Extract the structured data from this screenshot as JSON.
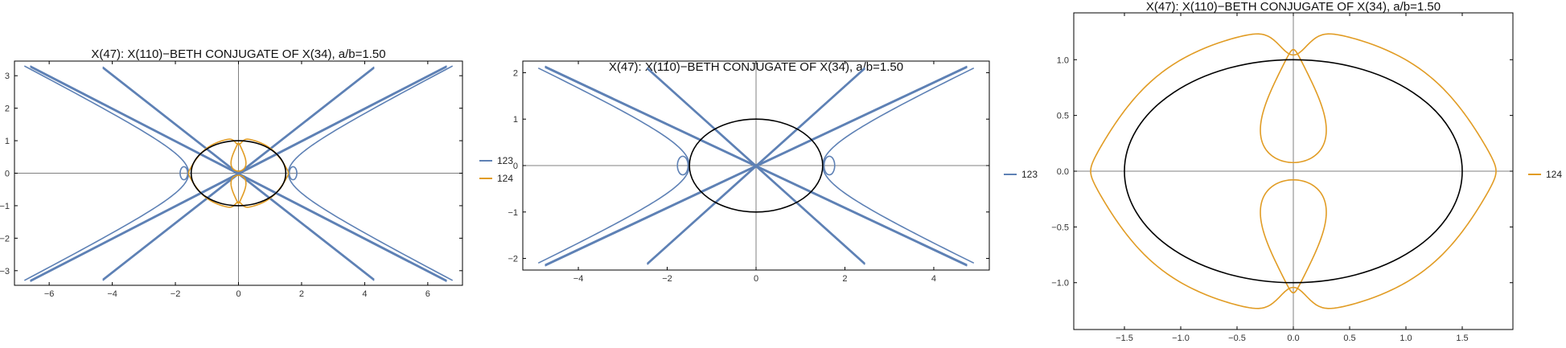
{
  "chart_data": [
    {
      "type": "line",
      "title": "X(47): X(110)−BETH CONJUGATE OF X(34), a/b=1.50",
      "xlabel": "",
      "ylabel": "",
      "xlim": [
        -7.1,
        7.1
      ],
      "ylim": [
        -3.45,
        3.45
      ],
      "xticks": [
        -6,
        -4,
        -2,
        0,
        2,
        4,
        6
      ],
      "yticks": [
        -3,
        -2,
        -1,
        0,
        1,
        2,
        3
      ],
      "legend": "right",
      "grid": false,
      "ellipse": {
        "a": 1.5,
        "b": 1.0,
        "color": "#000000"
      },
      "series": [
        {
          "name": "123",
          "color": "#5E81B5",
          "curves": [
            {
              "kind": "cross_lines",
              "slopes": [
                0.5,
                0.76
              ],
              "x_extent": [
                6.6,
                4.3
              ]
            },
            {
              "kind": "hyperbola",
              "c": 1.58,
              "slope": 0.5,
              "y_extent": 3.3
            }
          ]
        },
        {
          "name": "124",
          "color": "#E19C24",
          "curves": [
            {
              "kind": "rose",
              "peanut_width": 0.34,
              "x_extent": 1.58,
              "y_extent": 1.08
            }
          ]
        }
      ]
    },
    {
      "type": "line",
      "title": "X(47): X(110)−BETH CONJUGATE OF X(34), a/b=1.50",
      "xlabel": "",
      "ylabel": "",
      "xlim": [
        -5.25,
        5.25
      ],
      "ylim": [
        -2.25,
        2.25
      ],
      "xticks": [
        -4,
        -2,
        0,
        2,
        4
      ],
      "yticks": [
        -2,
        -1,
        0,
        1,
        2
      ],
      "legend": "right",
      "grid": false,
      "ellipse": {
        "a": 1.5,
        "b": 1.0,
        "color": "#000000"
      },
      "series": [
        {
          "name": "123",
          "color": "#5E81B5",
          "curves": [
            {
              "kind": "cross_lines",
              "slopes": [
                0.45,
                0.86
              ],
              "x_extent": [
                4.75,
                2.45
              ]
            },
            {
              "kind": "hyperbola",
              "c": 1.5,
              "slope": 0.45,
              "y_extent": 2.1
            }
          ]
        }
      ]
    },
    {
      "type": "line",
      "title": "X(47): X(110)−BETH CONJUGATE OF X(34), a/b=1.50",
      "xlabel": "",
      "ylabel": "",
      "xlim": [
        -1.95,
        1.95
      ],
      "ylim": [
        -1.42,
        1.42
      ],
      "xticks": [
        -1.5,
        -1.0,
        -0.5,
        0.0,
        0.5,
        1.0,
        1.5
      ],
      "yticks": [
        -1.0,
        -0.5,
        0.0,
        0.5,
        1.0
      ],
      "tick_labels_x": [
        "−1.5",
        "−1.0",
        "−0.5",
        "0.0",
        "0.5",
        "1.0",
        "1.5"
      ],
      "tick_labels_y": [
        "−1.0",
        "−0.5",
        "0.0",
        "0.5",
        "1.0"
      ],
      "legend": "right",
      "grid": false,
      "ellipse": {
        "a": 1.5,
        "b": 1.0,
        "color": "#000000"
      },
      "series": [
        {
          "name": "124",
          "color": "#E19C24",
          "curves": [
            {
              "kind": "rose",
              "peanut_width": 0.42,
              "x_extent": 1.8,
              "y_extent": 1.27
            }
          ]
        }
      ]
    }
  ]
}
